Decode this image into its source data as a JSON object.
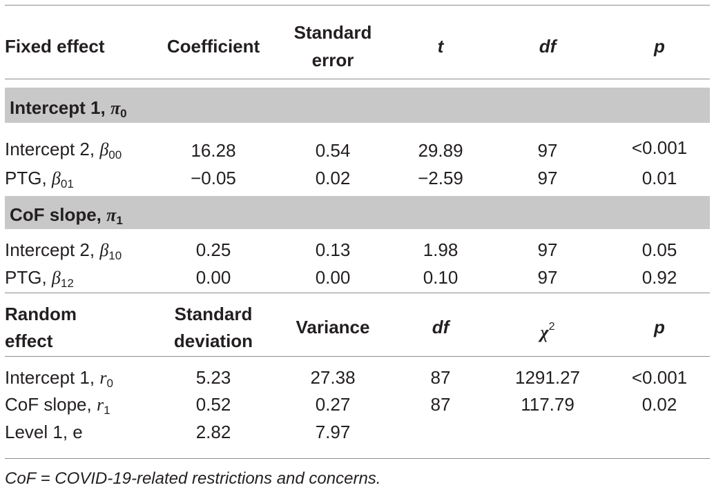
{
  "fixed_header": {
    "col1": "Fixed effect",
    "col2": "Coefficient",
    "col3_line1": "Standard",
    "col3_line2": "error",
    "col4": "t",
    "col5": "df",
    "col6": "p"
  },
  "section1": {
    "label": "Intercept 1, ",
    "symbol": "π",
    "sub": "0"
  },
  "section2": {
    "label": "CoF slope, ",
    "symbol": "π",
    "sub": "1"
  },
  "fixed_rows": [
    {
      "label": "Intercept 2, ",
      "symbol": "β",
      "sub": "00",
      "coef": "16.28",
      "se": "0.54",
      "t": "29.89",
      "df": "97",
      "p": "<0.001"
    },
    {
      "label": "PTG, ",
      "symbol": "β",
      "sub": "01",
      "coef": "−0.05",
      "se": "0.02",
      "t": "−2.59",
      "df": "97",
      "p": "0.01"
    },
    {
      "label": "Intercept 2, ",
      "symbol": "β",
      "sub": "10",
      "coef": "0.25",
      "se": "0.13",
      "t": "1.98",
      "df": "97",
      "p": "0.05"
    },
    {
      "label": "PTG, ",
      "symbol": "β",
      "sub": "12",
      "coef": "0.00",
      "se": "0.00",
      "t": "0.10",
      "df": "97",
      "p": "0.92"
    }
  ],
  "random_header": {
    "col1_line1": "Random",
    "col1_line2": "effect",
    "col2_line1": "Standard",
    "col2_line2": "deviation",
    "col3": "Variance",
    "col4": "df",
    "col5_symbol": "χ",
    "col5_sup": "2",
    "col6": "p"
  },
  "random_rows": [
    {
      "label": "Intercept 1, ",
      "symbol": "r",
      "sub": "0",
      "sd": "5.23",
      "variance": "27.38",
      "df": "87",
      "chi2": "1291.27",
      "p": "<0.001"
    },
    {
      "label": "CoF slope, ",
      "symbol": "r",
      "sub": "1",
      "sd": "0.52",
      "variance": "0.27",
      "df": "87",
      "chi2": "117.79",
      "p": "0.02"
    },
    {
      "label": "Level 1, e",
      "symbol": "",
      "sub": "",
      "sd": "2.82",
      "variance": "7.97",
      "df": "",
      "chi2": "",
      "p": ""
    }
  ],
  "footnote": "CoF = COVID-19-related restrictions and concerns."
}
